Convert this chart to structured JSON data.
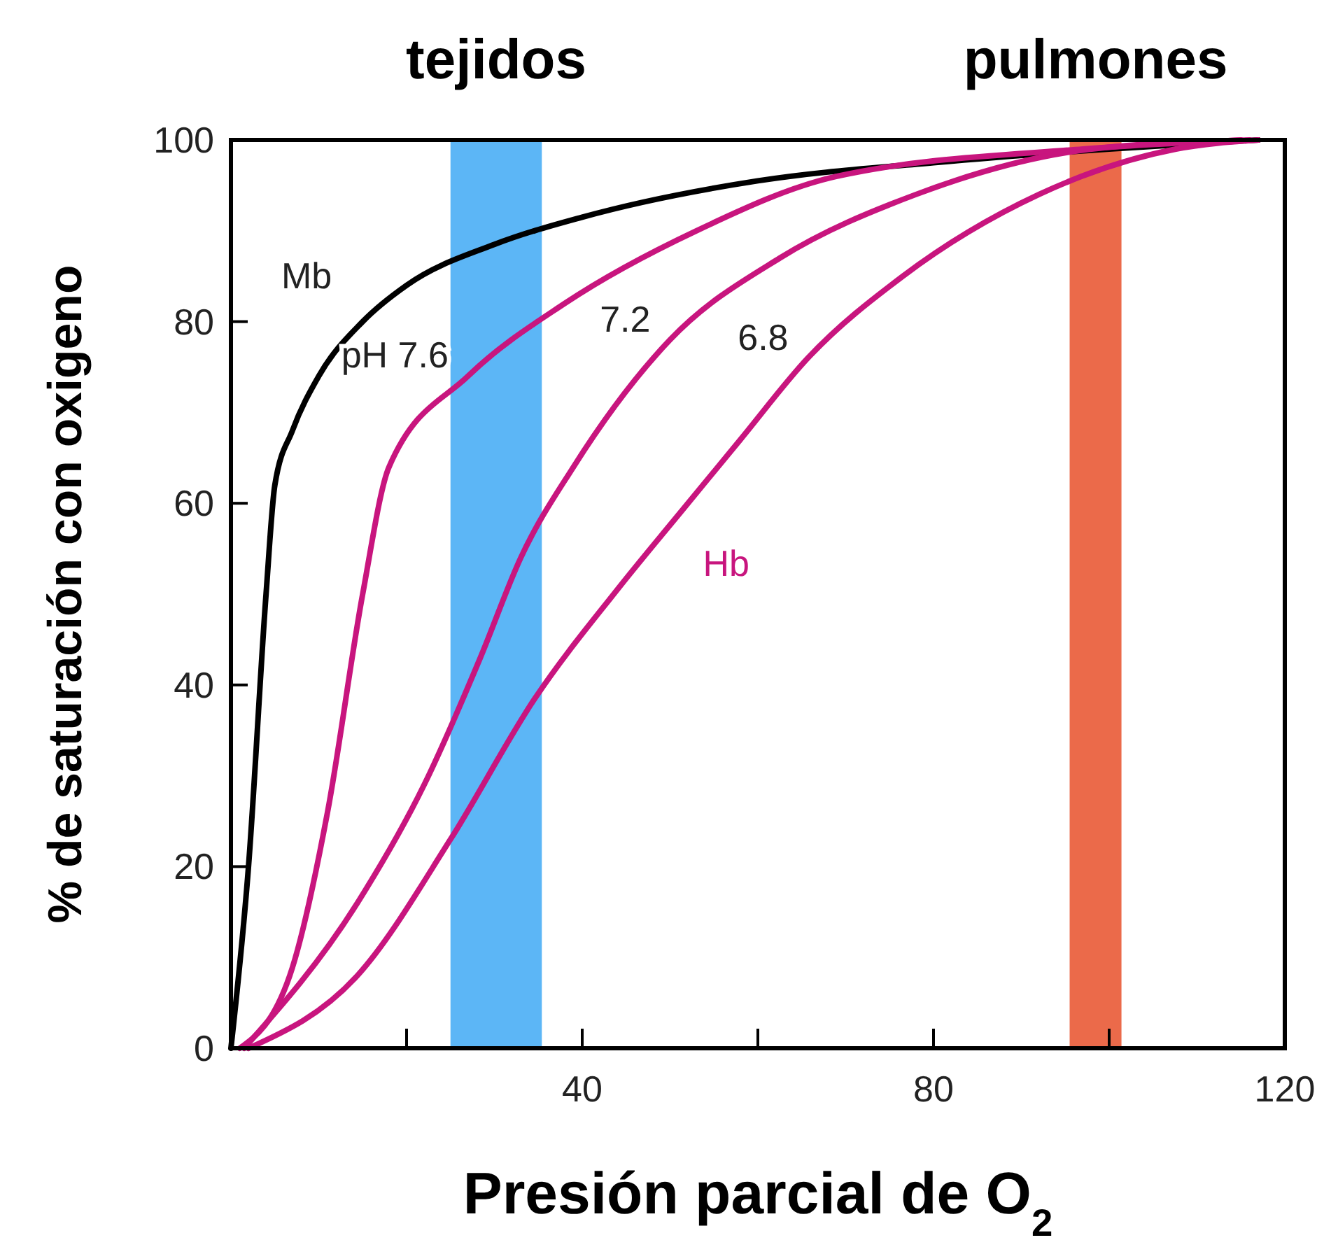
{
  "chart_data": {
    "type": "line",
    "xlabel": "Presión parcial de O$_{2}$",
    "ylabel": "% de saturación con oxigeno",
    "xlim": [
      0,
      120
    ],
    "ylim": [
      0,
      100
    ],
    "xticks": [
      {
        "value": 20,
        "label": null
      },
      40,
      {
        "value": 60,
        "label": null
      },
      80,
      {
        "value": 100,
        "label": null
      },
      120
    ],
    "yticks": [
      0,
      20,
      40,
      60,
      80,
      100
    ],
    "grid": false,
    "marker": "none",
    "line_style": "solid",
    "series": [
      {
        "name": "Mb",
        "color": "#000000",
        "x": [
          0,
          2,
          4,
          5,
          7,
          10,
          15,
          20,
          30,
          40,
          60,
          80,
          100,
          117
        ],
        "values": [
          0,
          20,
          50,
          62,
          68,
          74,
          80,
          84,
          88.5,
          91.5,
          95.5,
          97.5,
          99,
          100
        ]
      },
      {
        "name": "pH 7.6",
        "color": "#c8157e",
        "x": [
          1,
          6.7,
          11,
          15,
          18,
          27,
          38,
          53,
          69,
          97,
          115
        ],
        "values": [
          0,
          8,
          26,
          50,
          64,
          74,
          82,
          90,
          96,
          99,
          100
        ]
      },
      {
        "name": "7.2",
        "color": "#c8157e",
        "x": [
          1.5,
          14.4,
          22,
          28.4,
          33,
          39,
          50,
          62.5,
          78,
          98,
          116
        ],
        "values": [
          0,
          16,
          29,
          43,
          54,
          64,
          78,
          87,
          94,
          99,
          100
        ]
      },
      {
        "name": "6.8",
        "color": "#c8157e",
        "x": [
          2,
          14.4,
          25,
          34.6,
          44,
          51.7,
          58,
          65.7,
          76.5,
          92,
          107.6,
          117
        ],
        "values": [
          0,
          8,
          23,
          38.5,
          50.5,
          59.6,
          67,
          76,
          85,
          94,
          99,
          100
        ]
      }
    ],
    "bands": [
      {
        "axis": "x",
        "from": 25,
        "to": 35.4,
        "label": "tejidos",
        "color": "#3fa9f5"
      },
      {
        "axis": "x",
        "from": 95.5,
        "to": 101.4,
        "label": "pulmones",
        "color": "#e8502a"
      }
    ],
    "annotations": [
      "Hb"
    ]
  }
}
